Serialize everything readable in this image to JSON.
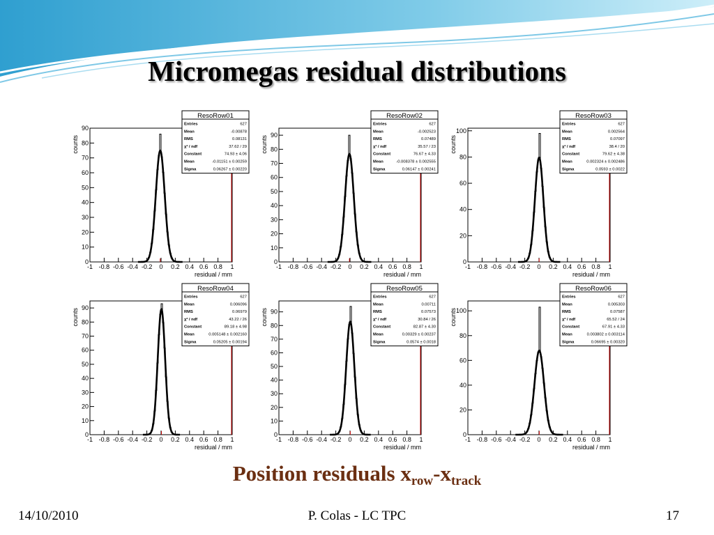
{
  "slide": {
    "title": "Micromegas residual distributions",
    "subtitle_main": "Position residuals x",
    "subtitle_sub1": "row",
    "subtitle_dash": "-x",
    "subtitle_sub2": "track",
    "footer_date": "14/10/2010",
    "footer_author": "P. Colas - LC TPC",
    "page_number": "17"
  },
  "colors": {
    "title": "#000000",
    "subtitle": "#6b2f12",
    "fit_line": "#000000",
    "range_marker": "#cc0000"
  },
  "chart_data": [
    {
      "type": "histogram",
      "title": "ResoRow01",
      "xlabel": "residual / mm",
      "ylabel": "counts",
      "xlim": [
        -1,
        1
      ],
      "ylim": [
        0,
        90
      ],
      "xticks": [
        "-1",
        "-0.8",
        "-0.6",
        "-0.4",
        "-0.2",
        "0",
        "0.2",
        "0.4",
        "0.6",
        "0.8",
        "1"
      ],
      "yticks": [
        "0",
        "10",
        "20",
        "30",
        "40",
        "50",
        "60",
        "70",
        "80",
        "90"
      ],
      "peak_bin": 86,
      "stats": [
        [
          "Entries",
          "627"
        ],
        [
          "Mean",
          "-0.00878"
        ],
        [
          "RMS",
          "0.08131"
        ],
        [
          "χ² / ndf",
          "37.62 / 29"
        ],
        [
          "Constant",
          "74.93 ± 4.06"
        ],
        [
          "Mean",
          "-0.01151 ± 0.00259"
        ],
        [
          "Sigma",
          "0.06267 ± 0.00220"
        ]
      ],
      "fit": {
        "constant": 74.93,
        "mean": -0.01151,
        "sigma": 0.06267
      }
    },
    {
      "type": "histogram",
      "title": "ResoRow02",
      "xlabel": "residual / mm",
      "ylabel": "counts",
      "xlim": [
        -1,
        1
      ],
      "ylim": [
        0,
        95
      ],
      "xticks": [
        "-1",
        "-0.8",
        "-0.6",
        "-0.4",
        "-0.2",
        "0",
        "0.2",
        "0.4",
        "0.6",
        "0.8",
        "1"
      ],
      "yticks": [
        "0",
        "10",
        "20",
        "30",
        "40",
        "50",
        "60",
        "70",
        "80",
        "90"
      ],
      "peak_bin": 90,
      "stats": [
        [
          "Entries",
          "627"
        ],
        [
          "Mean",
          "-0.002523"
        ],
        [
          "RMS",
          "0.07489"
        ],
        [
          "χ² / ndf",
          "35.57 / 23"
        ],
        [
          "Constant",
          "76.67 ± 4.33"
        ],
        [
          "Mean",
          "-0.008378 ± 0.002555"
        ],
        [
          "Sigma",
          "0.06147 ± 0.00241"
        ]
      ],
      "fit": {
        "constant": 76.67,
        "mean": -0.008378,
        "sigma": 0.06147
      }
    },
    {
      "type": "histogram",
      "title": "ResoRow03",
      "xlabel": "residual / mm",
      "ylabel": "counts",
      "xlim": [
        -1,
        1
      ],
      "ylim": [
        0,
        102
      ],
      "xticks": [
        "-1",
        "-0.8",
        "-0.6",
        "-0.4",
        "-0.2",
        "0",
        "0.2",
        "0.4",
        "0.6",
        "0.8",
        "1"
      ],
      "yticks": [
        "0",
        "20",
        "40",
        "60",
        "80",
        "100"
      ],
      "peak_bin": 98,
      "stats": [
        [
          "Entries",
          "627"
        ],
        [
          "Mean",
          "0.002564"
        ],
        [
          "RMS",
          "0.07097"
        ],
        [
          "χ² / ndf",
          "38.4 / 20"
        ],
        [
          "Constant",
          "79.62 ± 4.38"
        ],
        [
          "Mean",
          "0.002324 ± 0.002486"
        ],
        [
          "Sigma",
          "0.0593 ± 0.0022"
        ]
      ],
      "fit": {
        "constant": 79.62,
        "mean": 0.002324,
        "sigma": 0.0593
      }
    },
    {
      "type": "histogram",
      "title": "ResoRow04",
      "xlabel": "residual / mm",
      "ylabel": "counts",
      "xlim": [
        -1,
        1
      ],
      "ylim": [
        0,
        95
      ],
      "xticks": [
        "-1",
        "-0.8",
        "-0.6",
        "-0.4",
        "-0.2",
        "0",
        "0.2",
        "0.4",
        "0.6",
        "0.8",
        "1"
      ],
      "yticks": [
        "0",
        "10",
        "20",
        "30",
        "40",
        "50",
        "60",
        "70",
        "80",
        "90"
      ],
      "peak_bin": 93,
      "stats": [
        [
          "Entries",
          "627"
        ],
        [
          "Mean",
          "0.006096"
        ],
        [
          "RMS",
          "0.06979"
        ],
        [
          "χ² / ndf",
          "43.22 / 26"
        ],
        [
          "Constant",
          "89.18 ± 4.98"
        ],
        [
          "Mean",
          "0.005148 ± 0.002160"
        ],
        [
          "Sigma",
          "0.05205 ± 0.00194"
        ]
      ],
      "fit": {
        "constant": 89.18,
        "mean": 0.005148,
        "sigma": 0.05205
      }
    },
    {
      "type": "histogram",
      "title": "ResoRow05",
      "xlabel": "residual / mm",
      "ylabel": "counts",
      "xlim": [
        -1,
        1
      ],
      "ylim": [
        0,
        98
      ],
      "xticks": [
        "-1",
        "-0.8",
        "-0.6",
        "-0.4",
        "-0.2",
        "0",
        "0.2",
        "0.4",
        "0.6",
        "0.8",
        "1"
      ],
      "yticks": [
        "0",
        "10",
        "20",
        "30",
        "40",
        "50",
        "60",
        "70",
        "80",
        "90"
      ],
      "peak_bin": 94,
      "stats": [
        [
          "Entries",
          "627"
        ],
        [
          "Mean",
          "0.00711"
        ],
        [
          "RMS",
          "0.07573"
        ],
        [
          "χ² / ndf",
          "30.84 / 26"
        ],
        [
          "Constant",
          "82.87 ± 4.30"
        ],
        [
          "Mean",
          "0.00329 ± 0.00237"
        ],
        [
          "Sigma",
          "0.0574 ± 0.0018"
        ]
      ],
      "fit": {
        "constant": 82.87,
        "mean": 0.00329,
        "sigma": 0.0574
      }
    },
    {
      "type": "histogram",
      "title": "ResoRow06",
      "xlabel": "residual / mm",
      "ylabel": "counts",
      "xlim": [
        -1,
        1
      ],
      "ylim": [
        0,
        108
      ],
      "xticks": [
        "-1",
        "-0.8",
        "-0.6",
        "-0.4",
        "-0.2",
        "0",
        "0.2",
        "0.4",
        "0.6",
        "0.8",
        "1"
      ],
      "yticks": [
        "0",
        "20",
        "40",
        "60",
        "80",
        "100"
      ],
      "peak_bin": 103,
      "stats": [
        [
          "Entries",
          "627"
        ],
        [
          "Mean",
          "0.005303"
        ],
        [
          "RMS",
          "0.07587"
        ],
        [
          "χ² / ndf",
          "65.52 / 24"
        ],
        [
          "Constant",
          "67.91 ± 4.33"
        ],
        [
          "Mean",
          "0.003802 ± 0.003114"
        ],
        [
          "Sigma",
          "0.06695 ± 0.00320"
        ]
      ],
      "fit": {
        "constant": 67.91,
        "mean": 0.003802,
        "sigma": 0.06695
      }
    }
  ]
}
